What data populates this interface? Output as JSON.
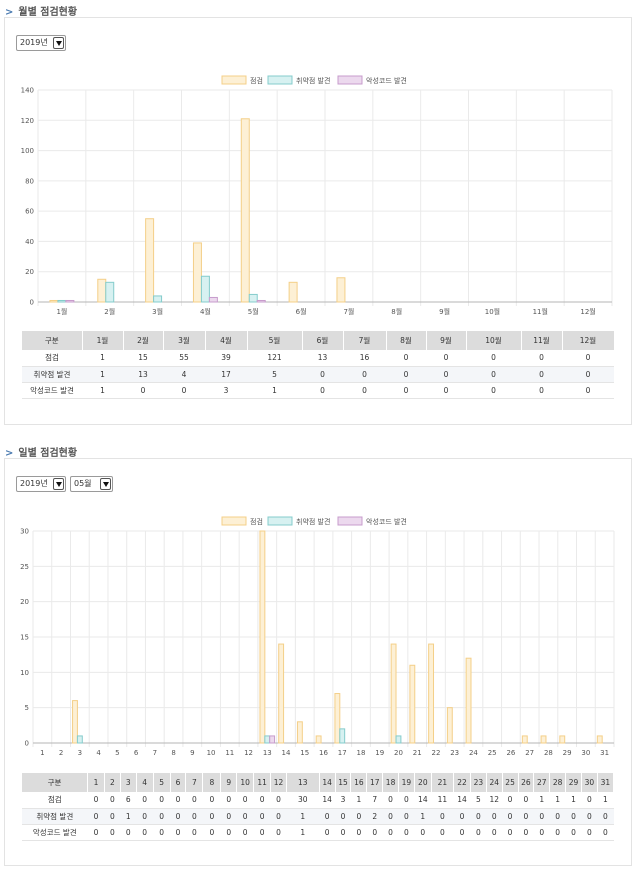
{
  "monthly": {
    "title": "월별 점검현황",
    "year_select": "2019년",
    "legend": [
      {
        "name": "점검",
        "fill": "#fdf0d5",
        "stroke": "#f4cf88"
      },
      {
        "name": "취약점 발견",
        "fill": "#d7f1f1",
        "stroke": "#84cccc"
      },
      {
        "name": "악성코드 발견",
        "fill": "#ecd9ee",
        "stroke": "#c79ccc"
      }
    ],
    "table": {
      "header": "구분",
      "rows": [
        {
          "label": "점검",
          "values": [
            "1",
            "15",
            "55",
            "39",
            "121",
            "13",
            "16",
            "0",
            "0",
            "0",
            "0",
            "0"
          ]
        },
        {
          "label": "취약점 발견",
          "values": [
            "1",
            "13",
            "4",
            "17",
            "5",
            "0",
            "0",
            "0",
            "0",
            "0",
            "0",
            "0"
          ]
        },
        {
          "label": "악성코드 발견",
          "values": [
            "1",
            "0",
            "0",
            "3",
            "1",
            "0",
            "0",
            "0",
            "0",
            "0",
            "0",
            "0"
          ]
        }
      ]
    }
  },
  "daily": {
    "title": "일별 점검현황",
    "year_select": "2019년",
    "month_select": "05월",
    "legend": [
      {
        "name": "점검",
        "fill": "#fdf0d5",
        "stroke": "#f4cf88"
      },
      {
        "name": "취약점 발견",
        "fill": "#d7f1f1",
        "stroke": "#84cccc"
      },
      {
        "name": "악성코드 발견",
        "fill": "#ecd9ee",
        "stroke": "#c79ccc"
      }
    ],
    "table": {
      "header": "구분",
      "rows": [
        {
          "label": "점검",
          "values": [
            "0",
            "0",
            "6",
            "0",
            "0",
            "0",
            "0",
            "0",
            "0",
            "0",
            "0",
            "0",
            "30",
            "14",
            "3",
            "1",
            "7",
            "0",
            "0",
            "14",
            "11",
            "14",
            "5",
            "12",
            "0",
            "0",
            "1",
            "1",
            "1",
            "0",
            "1"
          ]
        },
        {
          "label": "취약점 발견",
          "values": [
            "0",
            "0",
            "1",
            "0",
            "0",
            "0",
            "0",
            "0",
            "0",
            "0",
            "0",
            "0",
            "1",
            "0",
            "0",
            "0",
            "2",
            "0",
            "0",
            "1",
            "0",
            "0",
            "0",
            "0",
            "0",
            "0",
            "0",
            "0",
            "0",
            "0",
            "0"
          ]
        },
        {
          "label": "악성코드 발견",
          "values": [
            "0",
            "0",
            "0",
            "0",
            "0",
            "0",
            "0",
            "0",
            "0",
            "0",
            "0",
            "0",
            "1",
            "0",
            "0",
            "0",
            "0",
            "0",
            "0",
            "0",
            "0",
            "0",
            "0",
            "0",
            "0",
            "0",
            "0",
            "0",
            "0",
            "0",
            "0"
          ]
        }
      ]
    }
  },
  "chart_data": [
    {
      "type": "bar",
      "categories": [
        "1월",
        "2월",
        "3월",
        "4월",
        "5월",
        "6월",
        "7월",
        "8월",
        "9월",
        "10월",
        "11월",
        "12월"
      ],
      "series": [
        {
          "name": "점검",
          "values": [
            1,
            15,
            55,
            39,
            121,
            13,
            16,
            0,
            0,
            0,
            0,
            0
          ]
        },
        {
          "name": "취약점 발견",
          "values": [
            1,
            13,
            4,
            17,
            5,
            0,
            0,
            0,
            0,
            0,
            0,
            0
          ]
        },
        {
          "name": "악성코드 발견",
          "values": [
            1,
            0,
            0,
            3,
            1,
            0,
            0,
            0,
            0,
            0,
            0,
            0
          ]
        }
      ],
      "yticks": [
        "0",
        "20",
        "40",
        "60",
        "80",
        "100",
        "120",
        "140"
      ],
      "ylim": [
        0,
        140
      ],
      "legend": "top-center",
      "grid": true
    },
    {
      "type": "bar",
      "categories": [
        "1",
        "2",
        "3",
        "4",
        "5",
        "6",
        "7",
        "8",
        "9",
        "10",
        "11",
        "12",
        "13",
        "14",
        "15",
        "16",
        "17",
        "18",
        "19",
        "20",
        "21",
        "22",
        "23",
        "24",
        "25",
        "26",
        "27",
        "28",
        "29",
        "30",
        "31"
      ],
      "series": [
        {
          "name": "점검",
          "values": [
            0,
            0,
            6,
            0,
            0,
            0,
            0,
            0,
            0,
            0,
            0,
            0,
            30,
            14,
            3,
            1,
            7,
            0,
            0,
            14,
            11,
            14,
            5,
            12,
            0,
            0,
            1,
            1,
            1,
            0,
            1
          ]
        },
        {
          "name": "취약점 발견",
          "values": [
            0,
            0,
            1,
            0,
            0,
            0,
            0,
            0,
            0,
            0,
            0,
            0,
            1,
            0,
            0,
            0,
            2,
            0,
            0,
            1,
            0,
            0,
            0,
            0,
            0,
            0,
            0,
            0,
            0,
            0,
            0
          ]
        },
        {
          "name": "악성코드 발견",
          "values": [
            0,
            0,
            0,
            0,
            0,
            0,
            0,
            0,
            0,
            0,
            0,
            0,
            1,
            0,
            0,
            0,
            0,
            0,
            0,
            0,
            0,
            0,
            0,
            0,
            0,
            0,
            0,
            0,
            0,
            0,
            0
          ]
        }
      ],
      "yticks": [
        "0",
        "5",
        "10",
        "15",
        "20",
        "25",
        "30"
      ],
      "ylim": [
        0,
        30
      ],
      "legend": "top-center",
      "grid": true
    }
  ]
}
